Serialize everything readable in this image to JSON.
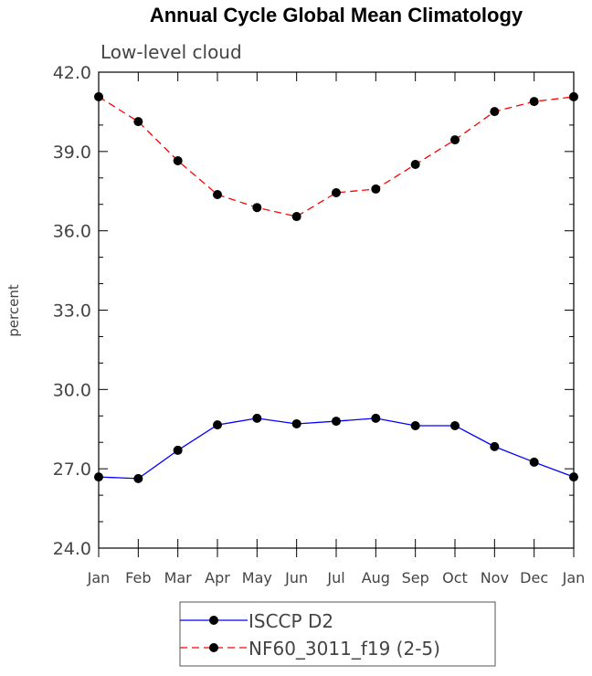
{
  "chart_data": {
    "type": "line",
    "title": "Annual Cycle Global Mean Climatology",
    "subtitle": "Low-level cloud",
    "xlabel": "",
    "ylabel": "percent",
    "categories": [
      "Jan",
      "Feb",
      "Mar",
      "Apr",
      "May",
      "Jun",
      "Jul",
      "Aug",
      "Sep",
      "Oct",
      "Nov",
      "Dec",
      "Jan"
    ],
    "ylim": [
      24.0,
      42.0
    ],
    "yticks": [
      "24.0",
      "27.0",
      "30.0",
      "33.0",
      "36.0",
      "39.0",
      "42.0"
    ],
    "grid": false,
    "legend_position": "bottom-center",
    "series": [
      {
        "name": "ISCCP D2",
        "color": "#0000ff",
        "dash": "solid",
        "values": [
          26.69,
          26.63,
          27.7,
          28.66,
          28.91,
          28.7,
          28.8,
          28.91,
          28.63,
          28.63,
          27.84,
          27.25,
          26.69
        ]
      },
      {
        "name": "NF60_3011_f19 (2-5)",
        "color": "#ff0000",
        "dash": "dashed",
        "values": [
          41.07,
          40.13,
          38.65,
          37.37,
          36.88,
          36.54,
          37.44,
          37.58,
          38.51,
          39.44,
          40.51,
          40.89,
          41.07
        ]
      }
    ]
  }
}
